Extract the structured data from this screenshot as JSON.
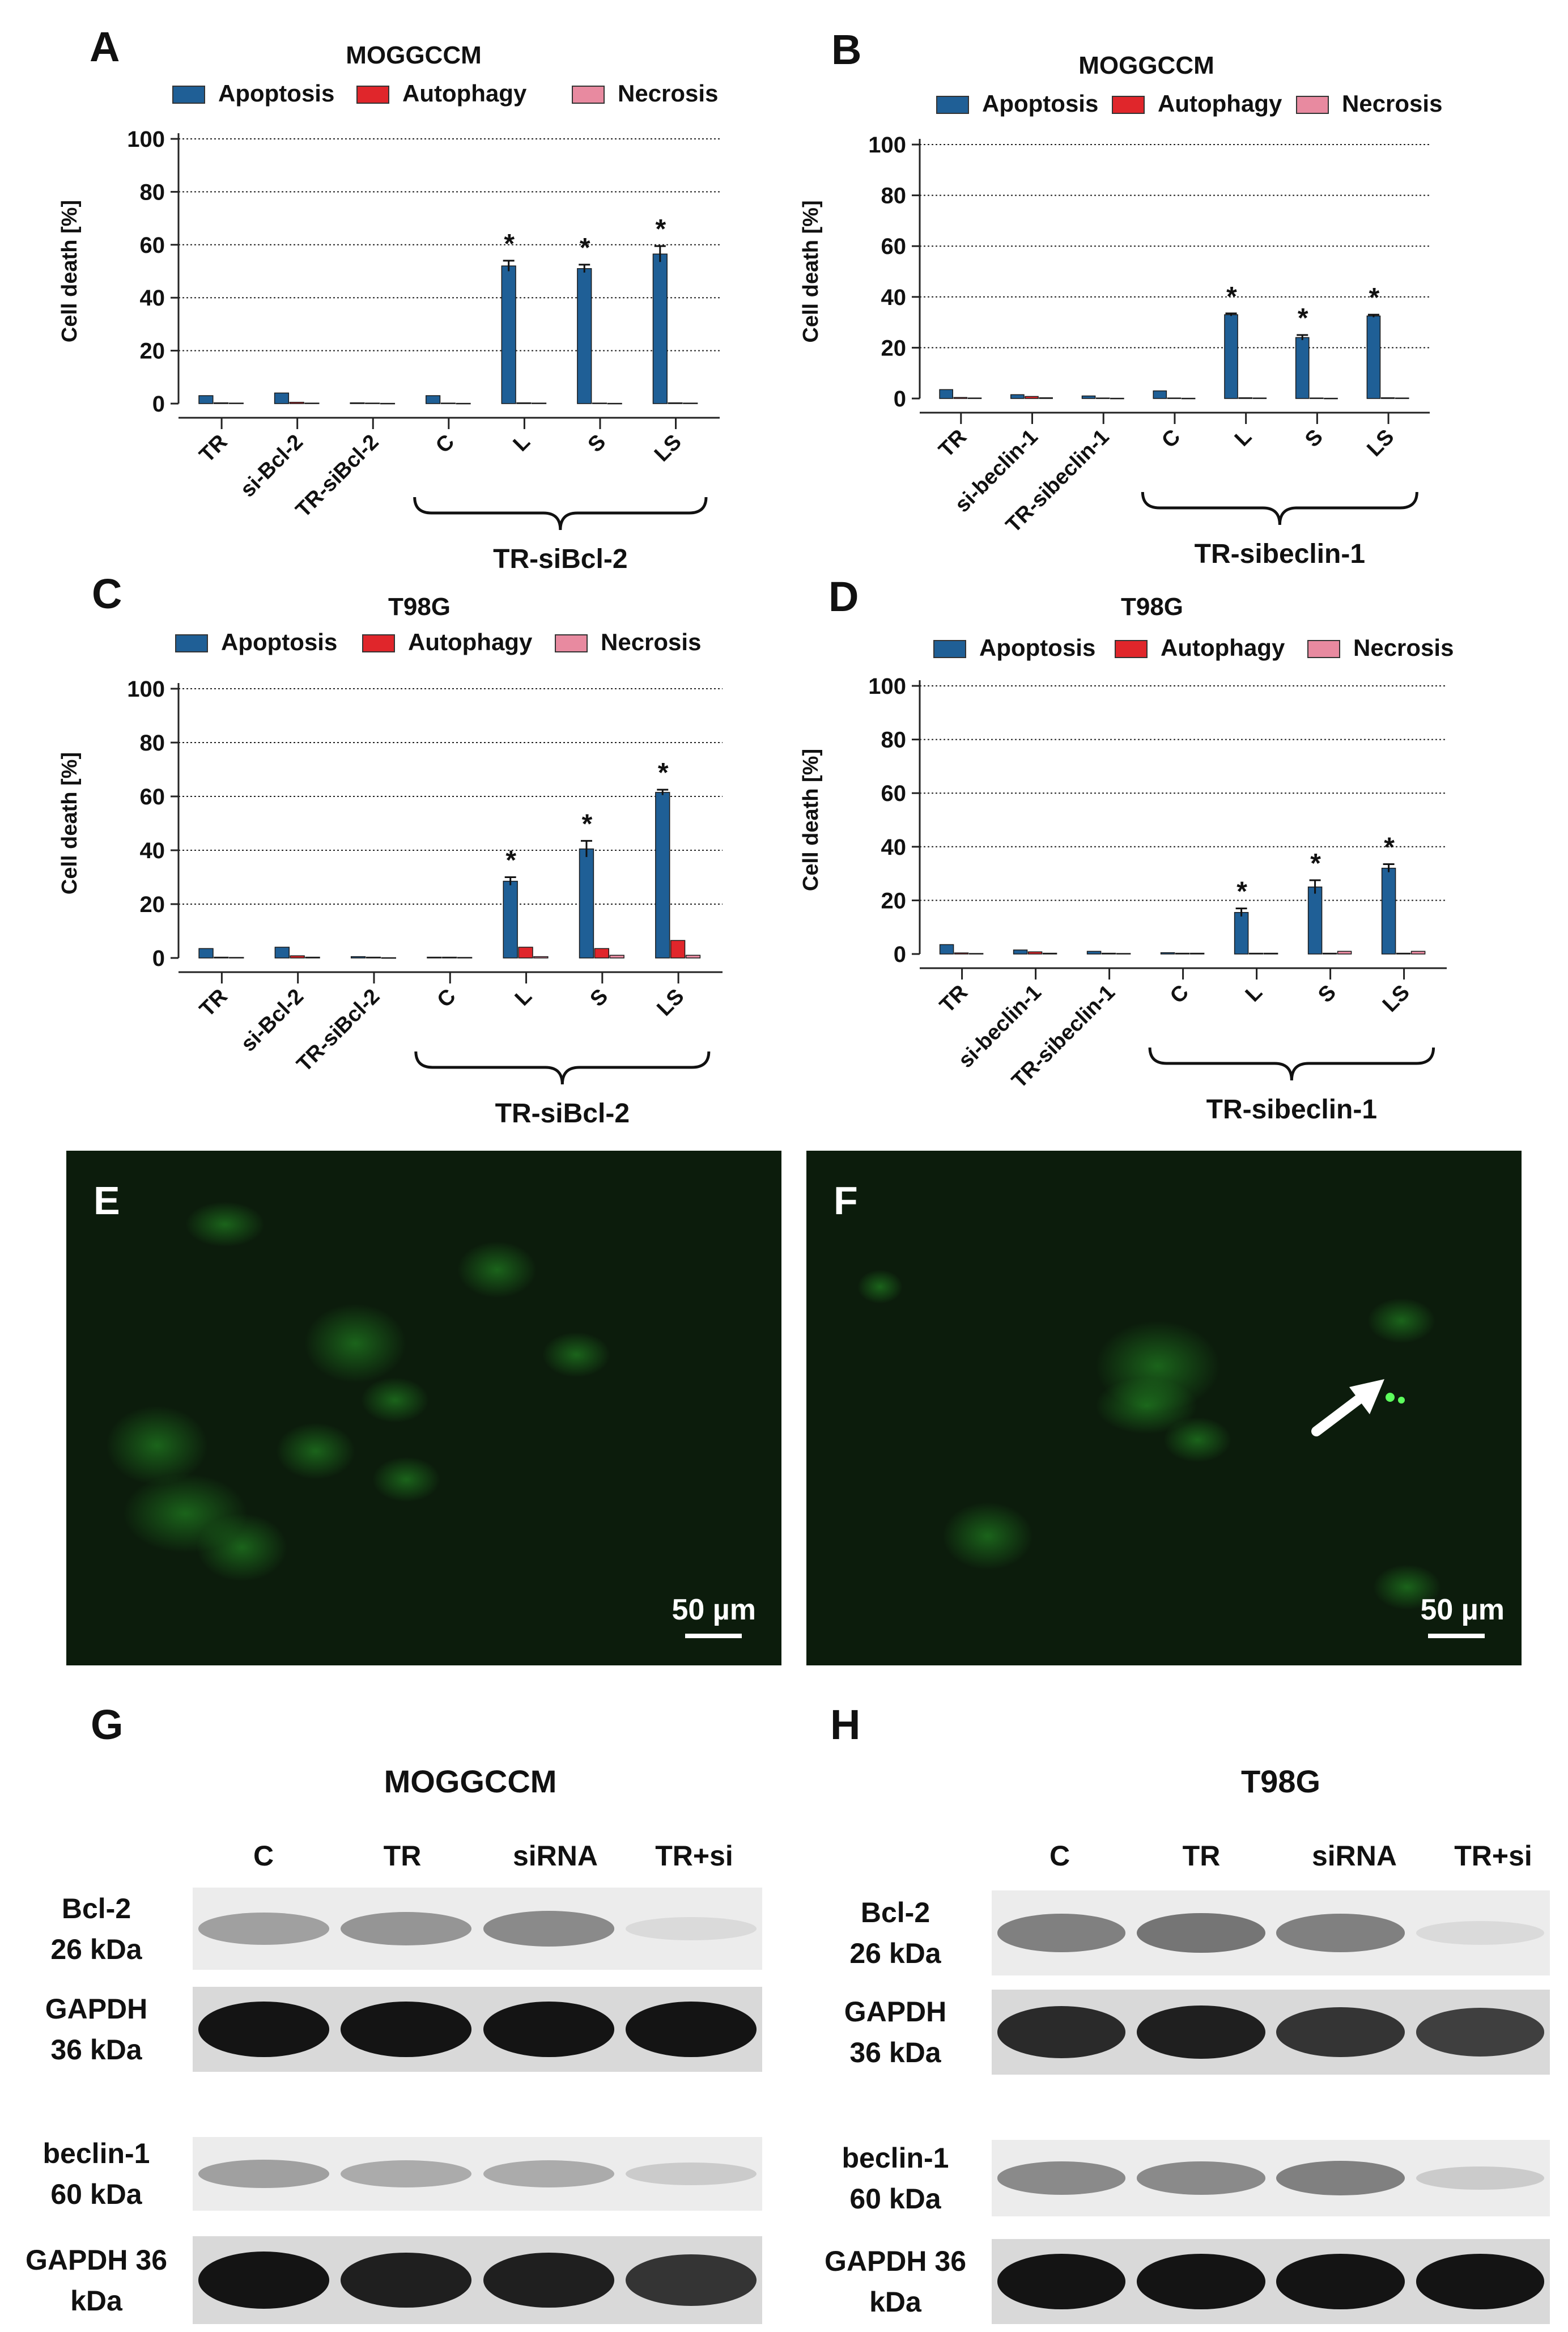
{
  "panel_letters": {
    "a": "A",
    "b": "B",
    "c": "C",
    "d": "D",
    "e": "E",
    "f": "F",
    "g": "G",
    "h": "H"
  },
  "legend_labels": [
    "Apoptosis",
    "Autophagy",
    "Necrosis"
  ],
  "significance_marker": "*",
  "colors": {
    "apoptosis": "#1f5f96",
    "autophagy": "#e0262b",
    "necrosis": "#e88aa0",
    "fluorescence": "#2dbb2d",
    "arrow": "#ffffff"
  },
  "chart_data": [
    {
      "type": "bar",
      "title": "MOGGCCM",
      "ylabel": "Cell death [%]",
      "ylim": [
        0,
        100
      ],
      "yticks": [
        0,
        20,
        40,
        60,
        80,
        100
      ],
      "grid": true,
      "legend": "top",
      "categories": [
        "TR",
        "si-Bcl-2",
        "TR-siBcl-2",
        "C",
        "L",
        "S",
        "LS"
      ],
      "group_label": "TR-siBcl-2",
      "group_span": [
        3,
        6
      ],
      "series": [
        {
          "name": "Apoptosis",
          "values": [
            3.0,
            4.0,
            0.3,
            3.0,
            52,
            51,
            56.5
          ],
          "errors": [
            0,
            0,
            0,
            0,
            2,
            1.5,
            3
          ]
        },
        {
          "name": "Autophagy",
          "values": [
            0.3,
            0.5,
            0.2,
            0.2,
            0.3,
            0.2,
            0.3
          ],
          "errors": [
            0,
            0,
            0,
            0,
            0,
            0,
            0
          ]
        },
        {
          "name": "Necrosis",
          "values": [
            0.2,
            0.2,
            0.1,
            0.1,
            0.2,
            0.1,
            0.2
          ],
          "errors": [
            0,
            0,
            0,
            0,
            0,
            0,
            0
          ]
        }
      ],
      "significant": [
        4,
        5,
        6
      ]
    },
    {
      "type": "bar",
      "title": "MOGGCCM",
      "ylabel": "Cell death [%]",
      "ylim": [
        0,
        100
      ],
      "yticks": [
        0,
        20,
        40,
        60,
        80,
        100
      ],
      "grid": true,
      "legend": "top",
      "categories": [
        "TR",
        "si-beclin-1",
        "TR-sibeclin-1",
        "C",
        "L",
        "S",
        "LS"
      ],
      "group_label": "TR-sibeclin-1",
      "group_span": [
        3,
        6
      ],
      "series": [
        {
          "name": "Apoptosis",
          "values": [
            3.5,
            1.5,
            1.0,
            3.0,
            33,
            24,
            32.5
          ],
          "errors": [
            0,
            0,
            0,
            0,
            0.5,
            1,
            0.5
          ]
        },
        {
          "name": "Autophagy",
          "values": [
            0.4,
            0.8,
            0.2,
            0.2,
            0.3,
            0.2,
            0.3
          ],
          "errors": [
            0,
            0,
            0,
            0,
            0,
            0,
            0
          ]
        },
        {
          "name": "Necrosis",
          "values": [
            0.2,
            0.3,
            0.1,
            0.1,
            0.2,
            0.1,
            0.2
          ],
          "errors": [
            0,
            0,
            0,
            0,
            0,
            0,
            0
          ]
        }
      ],
      "significant": [
        4,
        5,
        6
      ]
    },
    {
      "type": "bar",
      "title": "T98G",
      "ylabel": "Cell death [%]",
      "ylim": [
        0,
        100
      ],
      "yticks": [
        0,
        20,
        40,
        60,
        80,
        100
      ],
      "grid": true,
      "legend": "top",
      "categories": [
        "TR",
        "si-Bcl-2",
        "TR-siBcl-2",
        "C",
        "L",
        "S",
        "LS"
      ],
      "group_label": "TR-siBcl-2",
      "group_span": [
        3,
        6
      ],
      "series": [
        {
          "name": "Apoptosis",
          "values": [
            3.5,
            4.0,
            0.5,
            0.3,
            28.5,
            40.5,
            61.5
          ],
          "errors": [
            0,
            0,
            0,
            0,
            1.5,
            3,
            1
          ]
        },
        {
          "name": "Autophagy",
          "values": [
            0.3,
            0.8,
            0.3,
            0.3,
            4.0,
            3.5,
            6.5
          ],
          "errors": [
            0,
            0,
            0,
            0,
            0,
            0,
            0
          ]
        },
        {
          "name": "Necrosis",
          "values": [
            0.2,
            0.3,
            0.1,
            0.2,
            0.5,
            1.0,
            1.0
          ],
          "errors": [
            0,
            0,
            0,
            0,
            0,
            0,
            0
          ]
        }
      ],
      "significant": [
        4,
        5,
        6
      ]
    },
    {
      "type": "bar",
      "title": "T98G",
      "ylabel": "Cell death [%]",
      "ylim": [
        0,
        100
      ],
      "yticks": [
        0,
        20,
        40,
        60,
        80,
        100
      ],
      "grid": true,
      "legend": "top",
      "categories": [
        "TR",
        "si-beclin-1",
        "TR-sibeclin-1",
        "C",
        "L",
        "S",
        "LS"
      ],
      "group_label": "TR-sibeclin-1",
      "group_span": [
        3,
        6
      ],
      "series": [
        {
          "name": "Apoptosis",
          "values": [
            3.5,
            1.5,
            1.0,
            0.5,
            15.5,
            25,
            32
          ],
          "errors": [
            0,
            0,
            0,
            0,
            1.5,
            2.5,
            1.5
          ]
        },
        {
          "name": "Autophagy",
          "values": [
            0.4,
            0.8,
            0.3,
            0.3,
            0.3,
            0.3,
            0.3
          ],
          "errors": [
            0,
            0,
            0,
            0,
            0,
            0,
            0
          ]
        },
        {
          "name": "Necrosis",
          "values": [
            0.2,
            0.3,
            0.2,
            0.3,
            0.3,
            1.0,
            1.0
          ],
          "errors": [
            0,
            0,
            0,
            0,
            0,
            0,
            0
          ]
        }
      ],
      "significant": [
        4,
        5,
        6
      ]
    }
  ],
  "micrographs": [
    {
      "letter": "E",
      "scale": "50 µm"
    },
    {
      "letter": "F",
      "scale": "50 µm"
    }
  ],
  "western_blots": [
    {
      "letter": "G",
      "title": "MOGGCCM",
      "columns": [
        "C",
        "TR",
        "siRNA",
        "TR+si"
      ],
      "rows": [
        {
          "label_line1": "Bcl-2",
          "label_line2": "26 kDa",
          "intensity": [
            0.35,
            0.4,
            0.45,
            0.08
          ]
        },
        {
          "label_line1": "GAPDH",
          "label_line2": "36 kDa",
          "intensity": [
            1,
            1,
            1,
            1
          ]
        },
        {
          "label_line1": "beclin-1",
          "label_line2": "60 kDa",
          "intensity": [
            0.35,
            0.3,
            0.3,
            0.15
          ]
        },
        {
          "label_line1": "GAPDH 36",
          "label_line2": "kDa",
          "intensity": [
            1,
            0.95,
            0.95,
            0.85
          ]
        }
      ]
    },
    {
      "letter": "H",
      "title": "T98G",
      "columns": [
        "C",
        "TR",
        "siRNA",
        "TR+si"
      ],
      "rows": [
        {
          "label_line1": "Bcl-2",
          "label_line2": "26 kDa",
          "intensity": [
            0.5,
            0.55,
            0.5,
            0.08
          ]
        },
        {
          "label_line1": "GAPDH",
          "label_line2": "36 kDa",
          "intensity": [
            0.9,
            0.95,
            0.85,
            0.8
          ]
        },
        {
          "label_line1": "beclin-1",
          "label_line2": "60 kDa",
          "intensity": [
            0.45,
            0.45,
            0.5,
            0.15
          ]
        },
        {
          "label_line1": "GAPDH 36",
          "label_line2": "kDa",
          "intensity": [
            1,
            1,
            1,
            1
          ]
        }
      ]
    }
  ]
}
